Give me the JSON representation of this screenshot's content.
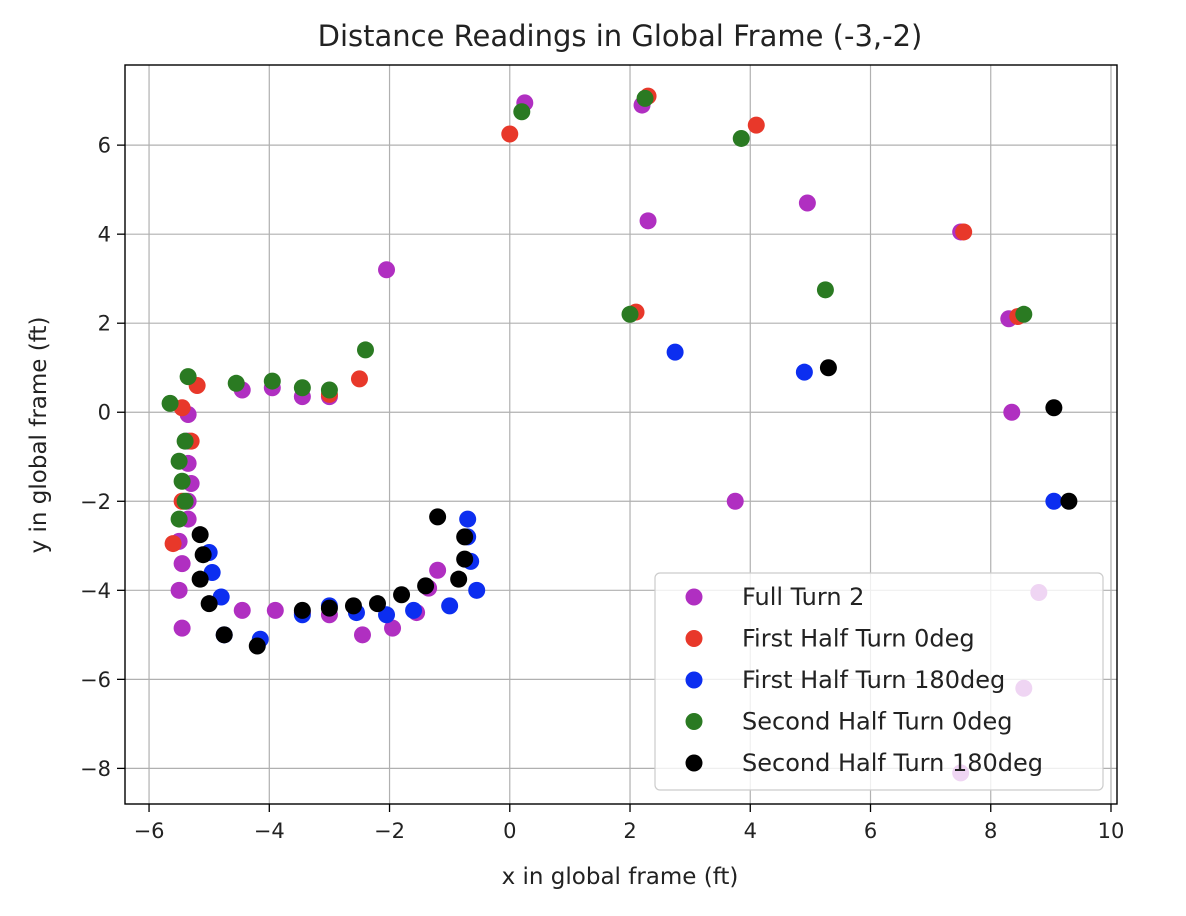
{
  "chart_data": {
    "type": "scatter",
    "title": "Distance Readings in Global Frame (-3,-2)",
    "xlabel": "x in global frame (ft)",
    "ylabel": "y in global frame (ft)",
    "xlim": [
      -6.4,
      10.1
    ],
    "ylim": [
      -8.8,
      7.8
    ],
    "xticks": [
      -6,
      -4,
      -2,
      0,
      2,
      4,
      6,
      8,
      10
    ],
    "yticks": [
      -8,
      -6,
      -4,
      -2,
      0,
      2,
      4,
      6
    ],
    "xtick_labels": [
      "−6",
      "−4",
      "−2",
      "0",
      "2",
      "4",
      "6",
      "8",
      "10"
    ],
    "ytick_labels": [
      "−8",
      "−6",
      "−4",
      "−2",
      "0",
      "2",
      "4",
      "6"
    ],
    "grid": true,
    "legend_position": "lower-right",
    "series": [
      {
        "name": "Full Turn 2",
        "color": "#b02fc1",
        "points": [
          [
            0.25,
            6.95
          ],
          [
            2.2,
            6.9
          ],
          [
            2.3,
            4.3
          ],
          [
            4.95,
            4.7
          ],
          [
            7.5,
            4.05
          ],
          [
            8.3,
            2.1
          ],
          [
            8.35,
            0.0
          ],
          [
            3.75,
            -2.0
          ],
          [
            -2.05,
            3.2
          ],
          [
            -4.45,
            0.5
          ],
          [
            -3.95,
            0.55
          ],
          [
            -3.45,
            0.35
          ],
          [
            -3.0,
            0.35
          ],
          [
            -5.35,
            -0.05
          ],
          [
            -5.35,
            -0.65
          ],
          [
            -5.35,
            -1.15
          ],
          [
            -5.3,
            -1.6
          ],
          [
            -5.35,
            -2.0
          ],
          [
            -5.35,
            -2.4
          ],
          [
            -5.5,
            -2.9
          ],
          [
            -5.45,
            -3.4
          ],
          [
            -5.5,
            -4.0
          ],
          [
            -5.45,
            -4.85
          ],
          [
            -4.45,
            -4.45
          ],
          [
            -3.9,
            -4.45
          ],
          [
            -3.45,
            -4.5
          ],
          [
            -3.0,
            -4.55
          ],
          [
            -2.45,
            -5.0
          ],
          [
            -1.95,
            -4.85
          ],
          [
            -1.55,
            -4.5
          ],
          [
            -1.2,
            -3.55
          ],
          [
            -1.35,
            -3.95
          ],
          [
            8.8,
            -4.05
          ],
          [
            8.55,
            -6.2
          ],
          [
            7.5,
            -8.1
          ]
        ]
      },
      {
        "name": "First Half Turn 0deg",
        "color": "#e8382a",
        "points": [
          [
            0.0,
            6.25
          ],
          [
            2.3,
            7.1
          ],
          [
            4.1,
            6.45
          ],
          [
            7.55,
            4.05
          ],
          [
            8.45,
            2.15
          ],
          [
            2.1,
            2.25
          ],
          [
            -2.5,
            0.75
          ],
          [
            -3.0,
            0.4
          ],
          [
            -5.2,
            0.6
          ],
          [
            -5.45,
            0.1
          ],
          [
            -5.3,
            -0.65
          ],
          [
            -5.45,
            -2.0
          ],
          [
            -5.6,
            -2.95
          ]
        ]
      },
      {
        "name": "First Half Turn 180deg",
        "color": "#0c2ef0",
        "points": [
          [
            2.75,
            1.35
          ],
          [
            4.9,
            0.9
          ],
          [
            9.05,
            -2.0
          ],
          [
            -0.7,
            -2.4
          ],
          [
            -0.7,
            -2.8
          ],
          [
            -0.65,
            -3.35
          ],
          [
            -0.55,
            -4.0
          ],
          [
            -1.0,
            -4.35
          ],
          [
            -1.6,
            -4.45
          ],
          [
            -2.05,
            -4.55
          ],
          [
            -2.55,
            -4.5
          ],
          [
            -3.0,
            -4.35
          ],
          [
            -3.45,
            -4.55
          ],
          [
            -4.15,
            -5.1
          ],
          [
            -4.75,
            -5.0
          ],
          [
            -4.8,
            -4.15
          ],
          [
            -4.95,
            -3.6
          ],
          [
            -5.0,
            -3.15
          ]
        ]
      },
      {
        "name": "Second Half Turn 0deg",
        "color": "#2a7a22",
        "points": [
          [
            0.2,
            6.75
          ],
          [
            2.25,
            7.05
          ],
          [
            3.85,
            6.15
          ],
          [
            5.25,
            2.75
          ],
          [
            8.55,
            2.2
          ],
          [
            2.0,
            2.2
          ],
          [
            -2.4,
            1.4
          ],
          [
            -3.0,
            0.5
          ],
          [
            -3.45,
            0.55
          ],
          [
            -3.95,
            0.7
          ],
          [
            -4.55,
            0.65
          ],
          [
            -5.35,
            0.8
          ],
          [
            -5.65,
            0.2
          ],
          [
            -5.4,
            -0.65
          ],
          [
            -5.5,
            -1.1
          ],
          [
            -5.45,
            -1.55
          ],
          [
            -5.4,
            -2.0
          ],
          [
            -5.5,
            -2.4
          ]
        ]
      },
      {
        "name": "Second Half Turn 180deg",
        "color": "#000000",
        "points": [
          [
            5.3,
            1.0
          ],
          [
            9.05,
            0.1
          ],
          [
            9.3,
            -2.0
          ],
          [
            -1.2,
            -2.35
          ],
          [
            -0.75,
            -2.8
          ],
          [
            -0.75,
            -3.3
          ],
          [
            -0.85,
            -3.75
          ],
          [
            -1.4,
            -3.9
          ],
          [
            -1.8,
            -4.1
          ],
          [
            -2.2,
            -4.3
          ],
          [
            -2.6,
            -4.35
          ],
          [
            -3.0,
            -4.4
          ],
          [
            -3.45,
            -4.45
          ],
          [
            -4.2,
            -5.25
          ],
          [
            -4.75,
            -5.0
          ],
          [
            -5.0,
            -4.3
          ],
          [
            -5.15,
            -3.75
          ],
          [
            -5.1,
            -3.2
          ],
          [
            -5.15,
            -2.75
          ]
        ]
      }
    ]
  }
}
